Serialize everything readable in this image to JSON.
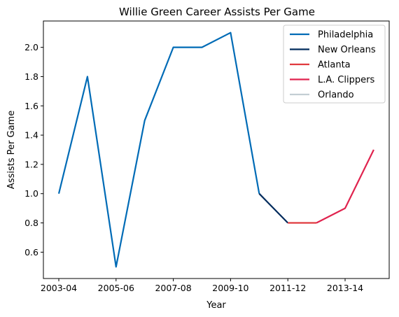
{
  "chart_data": {
    "type": "line",
    "title": "Willie Green Career Assists Per Game",
    "xlabel": "Year",
    "ylabel": "Assists Per Game",
    "x_tick_labels": [
      "2003-04",
      "2005-06",
      "2007-08",
      "2009-10",
      "2011-12",
      "2013-14"
    ],
    "y_ticks": [
      0.6,
      0.8,
      1.0,
      1.2,
      1.4,
      1.6,
      1.8,
      2.0
    ],
    "ylim": [
      0.42,
      2.18
    ],
    "legend_position": "top-right",
    "grid": false,
    "series": [
      {
        "name": "Philadelphia",
        "color": "#006BB6",
        "x": [
          "2003-04",
          "2004-05",
          "2005-06",
          "2006-07",
          "2007-08",
          "2008-09",
          "2009-10",
          "2010-11"
        ],
        "values": [
          1.0,
          1.8,
          0.5,
          1.5,
          2.0,
          2.0,
          2.1,
          1.0
        ]
      },
      {
        "name": "New Orleans",
        "color": "#002B5C",
        "x": [
          "2010-11",
          "2011-12"
        ],
        "values": [
          1.0,
          0.8
        ]
      },
      {
        "name": "Atlanta",
        "color": "#E03A3E",
        "x": [
          "2011-12",
          "2012-13"
        ],
        "values": [
          0.8,
          0.8
        ]
      },
      {
        "name": "L.A. Clippers",
        "color": "#E0234E",
        "x": [
          "2012-13",
          "2013-14",
          "2014-15"
        ],
        "values": [
          0.8,
          0.9,
          1.3
        ]
      },
      {
        "name": "Orlando",
        "color": "#C4CED4",
        "x": [],
        "values": []
      }
    ]
  }
}
